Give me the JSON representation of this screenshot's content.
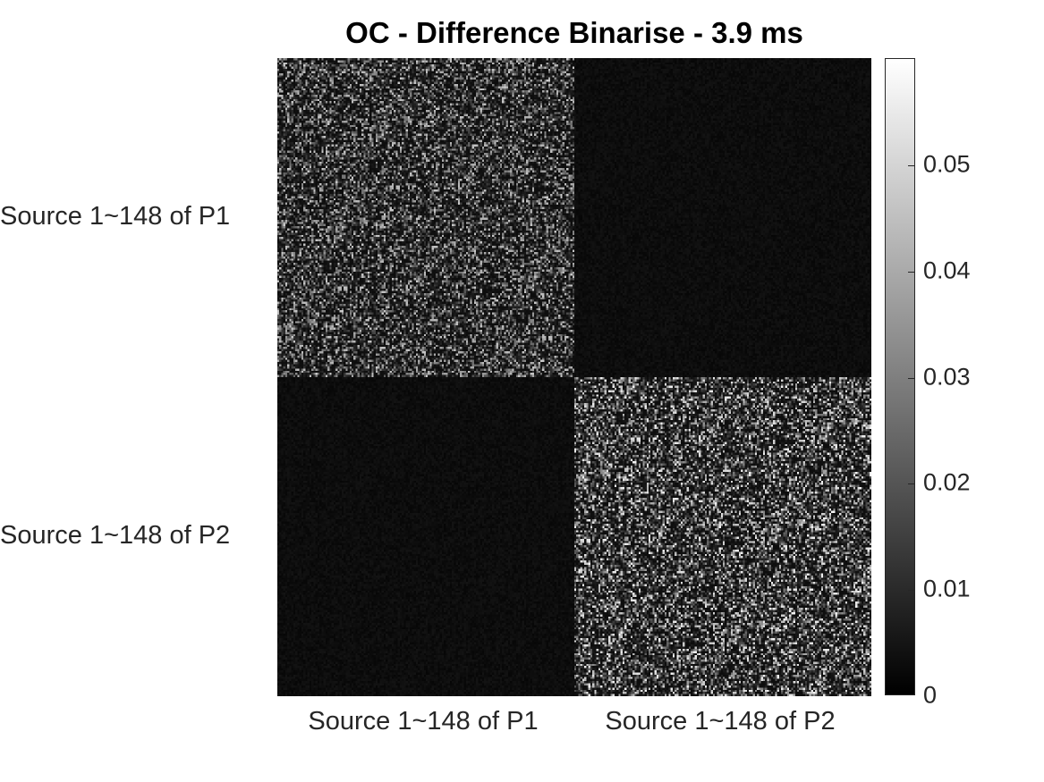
{
  "chart_data": {
    "type": "heatmap",
    "title": "OC - Difference Binarise - 3.9 ms",
    "n_rows": 296,
    "n_cols": 296,
    "block_size": 148,
    "x_tick_labels": [
      "Source 1~148 of P1",
      "Source 1~148 of P2"
    ],
    "y_tick_labels": [
      "Source 1~148 of P1",
      "Source 1~148 of P2"
    ],
    "colormap": "gray",
    "clim": [
      0,
      0.06
    ],
    "colorbar_ticks": [
      {
        "value": 0,
        "label": "0"
      },
      {
        "value": 0.01,
        "label": "0.01"
      },
      {
        "value": 0.02,
        "label": "0.02"
      },
      {
        "value": 0.03,
        "label": "0.03"
      },
      {
        "value": 0.04,
        "label": "0.04"
      },
      {
        "value": 0.05,
        "label": "0.05"
      }
    ],
    "blocks": [
      {
        "row": "P1",
        "col": "P1",
        "description_level": "high",
        "typical_max": 0.045
      },
      {
        "row": "P1",
        "col": "P2",
        "description_level": "low",
        "typical_max": 0.005
      },
      {
        "row": "P2",
        "col": "P1",
        "description_level": "low",
        "typical_max": 0.005
      },
      {
        "row": "P2",
        "col": "P2",
        "description_level": "high",
        "typical_max": 0.055
      }
    ]
  }
}
